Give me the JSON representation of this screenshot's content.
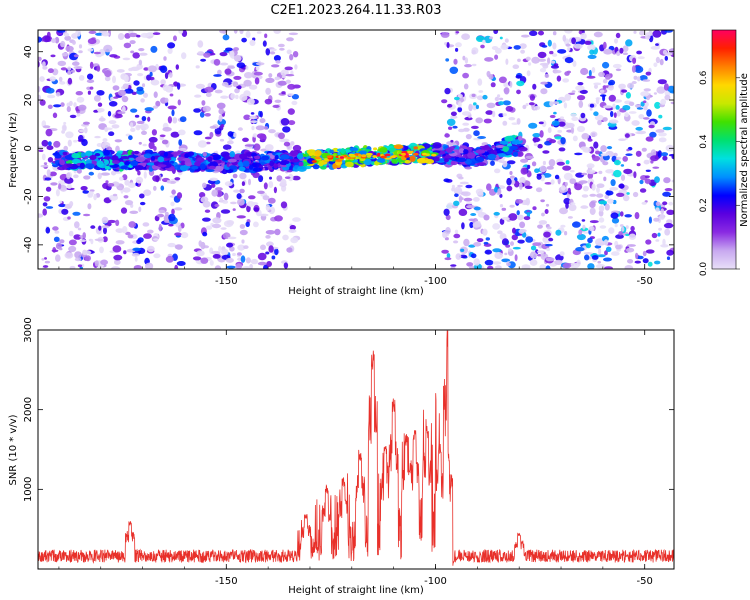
{
  "figure": {
    "title": "C2E1.2023.264.11.33.R03"
  },
  "colors": {
    "snr_line": "#e8302a",
    "axis": "#000000",
    "background": "#ffffff"
  },
  "chart_data": [
    {
      "type": "heatmap",
      "xlabel": "Height of straight line (km)",
      "ylabel": "Frequency (Hz)",
      "xlim": [
        -195,
        -43
      ],
      "ylim": [
        -50,
        49
      ],
      "x_ticks": [
        -150,
        -100,
        -50
      ],
      "y_ticks": [
        -40,
        -20,
        0,
        20,
        40
      ],
      "grid": false,
      "colorbar": {
        "label": "Normalized spectral amplitude",
        "range": [
          0,
          0.75
        ],
        "ticks": [
          "0.0",
          "0.2",
          "0.4",
          "0.6"
        ],
        "colormap": [
          "#e8e0f8",
          "#c8a8f0",
          "#8a2be2",
          "#5a00e0",
          "#0000ff",
          "#0090ff",
          "#00e0e0",
          "#00e070",
          "#40e000",
          "#c8e800",
          "#ffd800",
          "#ff8000",
          "#ff2000",
          "#ff0060"
        ]
      },
      "signal_band": {
        "center_frequency_hz": [
          {
            "x": -190,
            "f": -5
          },
          {
            "x": -170,
            "f": -5
          },
          {
            "x": -150,
            "f": -6
          },
          {
            "x": -130,
            "f": -5
          },
          {
            "x": -115,
            "f": -3
          },
          {
            "x": -100,
            "f": -2
          },
          {
            "x": -90,
            "f": -4
          },
          {
            "x": -82,
            "f": 1
          }
        ],
        "strong_regions_x": [
          [
            -130,
            -100
          ]
        ]
      },
      "empty_regions_x": [
        [
          -160,
          -157
        ],
        [
          -133,
          -98
        ]
      ]
    },
    {
      "type": "line",
      "xlabel": "Height of straight line (km)",
      "ylabel": "SNR (10 * v/v)",
      "xlim": [
        -195,
        -43
      ],
      "ylim": [
        0,
        3000
      ],
      "x_ticks": [
        -150,
        -100,
        -50
      ],
      "y_ticks": [
        1000,
        2000,
        3000
      ],
      "grid": false,
      "series": [
        {
          "peaks": [
            {
              "x": -173,
              "y": 600
            },
            {
              "x": -131,
              "y": 700
            },
            {
              "x": -126,
              "y": 1050
            },
            {
              "x": -122,
              "y": 1150
            },
            {
              "x": -118,
              "y": 1500
            },
            {
              "x": -115,
              "y": 2780
            },
            {
              "x": -112,
              "y": 1550
            },
            {
              "x": -110,
              "y": 2150
            },
            {
              "x": -107,
              "y": 1700
            },
            {
              "x": -105,
              "y": 1750
            },
            {
              "x": -102,
              "y": 1800
            },
            {
              "x": -99,
              "y": 1600
            },
            {
              "x": -97,
              "y": 3000
            },
            {
              "x": -80,
              "y": 450
            }
          ],
          "baseline_level": 180
        }
      ]
    }
  ]
}
